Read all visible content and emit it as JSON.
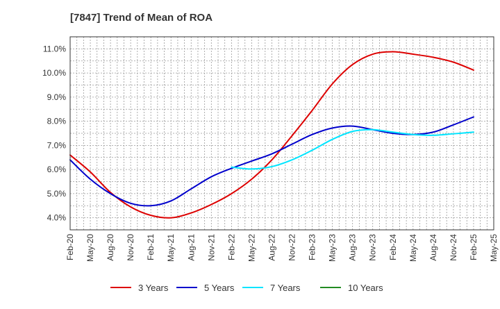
{
  "chart_data": {
    "type": "line",
    "title": "[7847]  Trend of Mean of ROA",
    "xlabel": "",
    "ylabel": "",
    "ylim": [
      3.5,
      11.5
    ],
    "yticks": [
      4.0,
      5.0,
      6.0,
      7.0,
      8.0,
      9.0,
      10.0,
      11.0
    ],
    "ytick_labels": [
      "4.0%",
      "5.0%",
      "6.0%",
      "7.0%",
      "8.0%",
      "9.0%",
      "10.0%",
      "11.0%"
    ],
    "categories": [
      "Feb-20",
      "May-20",
      "Aug-20",
      "Nov-20",
      "Feb-21",
      "May-21",
      "Aug-21",
      "Nov-21",
      "Feb-22",
      "May-22",
      "Aug-22",
      "Nov-22",
      "Feb-23",
      "May-23",
      "Aug-23",
      "Nov-23",
      "Feb-24",
      "May-24",
      "Aug-24",
      "Nov-24",
      "Feb-25",
      "May-25"
    ],
    "grid": true,
    "legend_position": "bottom",
    "series": [
      {
        "name": "3 Years",
        "color": "#dd0000",
        "values": [
          6.6,
          5.9,
          5.05,
          4.45,
          4.1,
          4.0,
          4.2,
          4.55,
          5.0,
          5.6,
          6.4,
          7.4,
          8.45,
          9.55,
          10.35,
          10.78,
          10.88,
          10.78,
          10.65,
          10.45,
          10.12,
          null
        ]
      },
      {
        "name": "5 Years",
        "color": "#0000cc",
        "values": [
          6.4,
          5.6,
          5.0,
          4.6,
          4.5,
          4.7,
          5.2,
          5.7,
          6.05,
          6.35,
          6.65,
          7.05,
          7.45,
          7.72,
          7.8,
          7.65,
          7.5,
          7.45,
          7.55,
          7.85,
          8.18,
          null
        ]
      },
      {
        "name": "7 Years",
        "color": "#00e5ff",
        "values": [
          null,
          null,
          null,
          null,
          null,
          null,
          null,
          null,
          6.1,
          6.02,
          6.12,
          6.4,
          6.8,
          7.25,
          7.58,
          7.65,
          7.55,
          7.45,
          7.42,
          7.48,
          7.55,
          null
        ]
      },
      {
        "name": "10 Years",
        "color": "#228b22",
        "values": [
          null,
          null,
          null,
          null,
          null,
          null,
          null,
          null,
          null,
          null,
          null,
          null,
          null,
          null,
          null,
          null,
          null,
          null,
          null,
          null,
          null,
          null
        ]
      }
    ]
  }
}
